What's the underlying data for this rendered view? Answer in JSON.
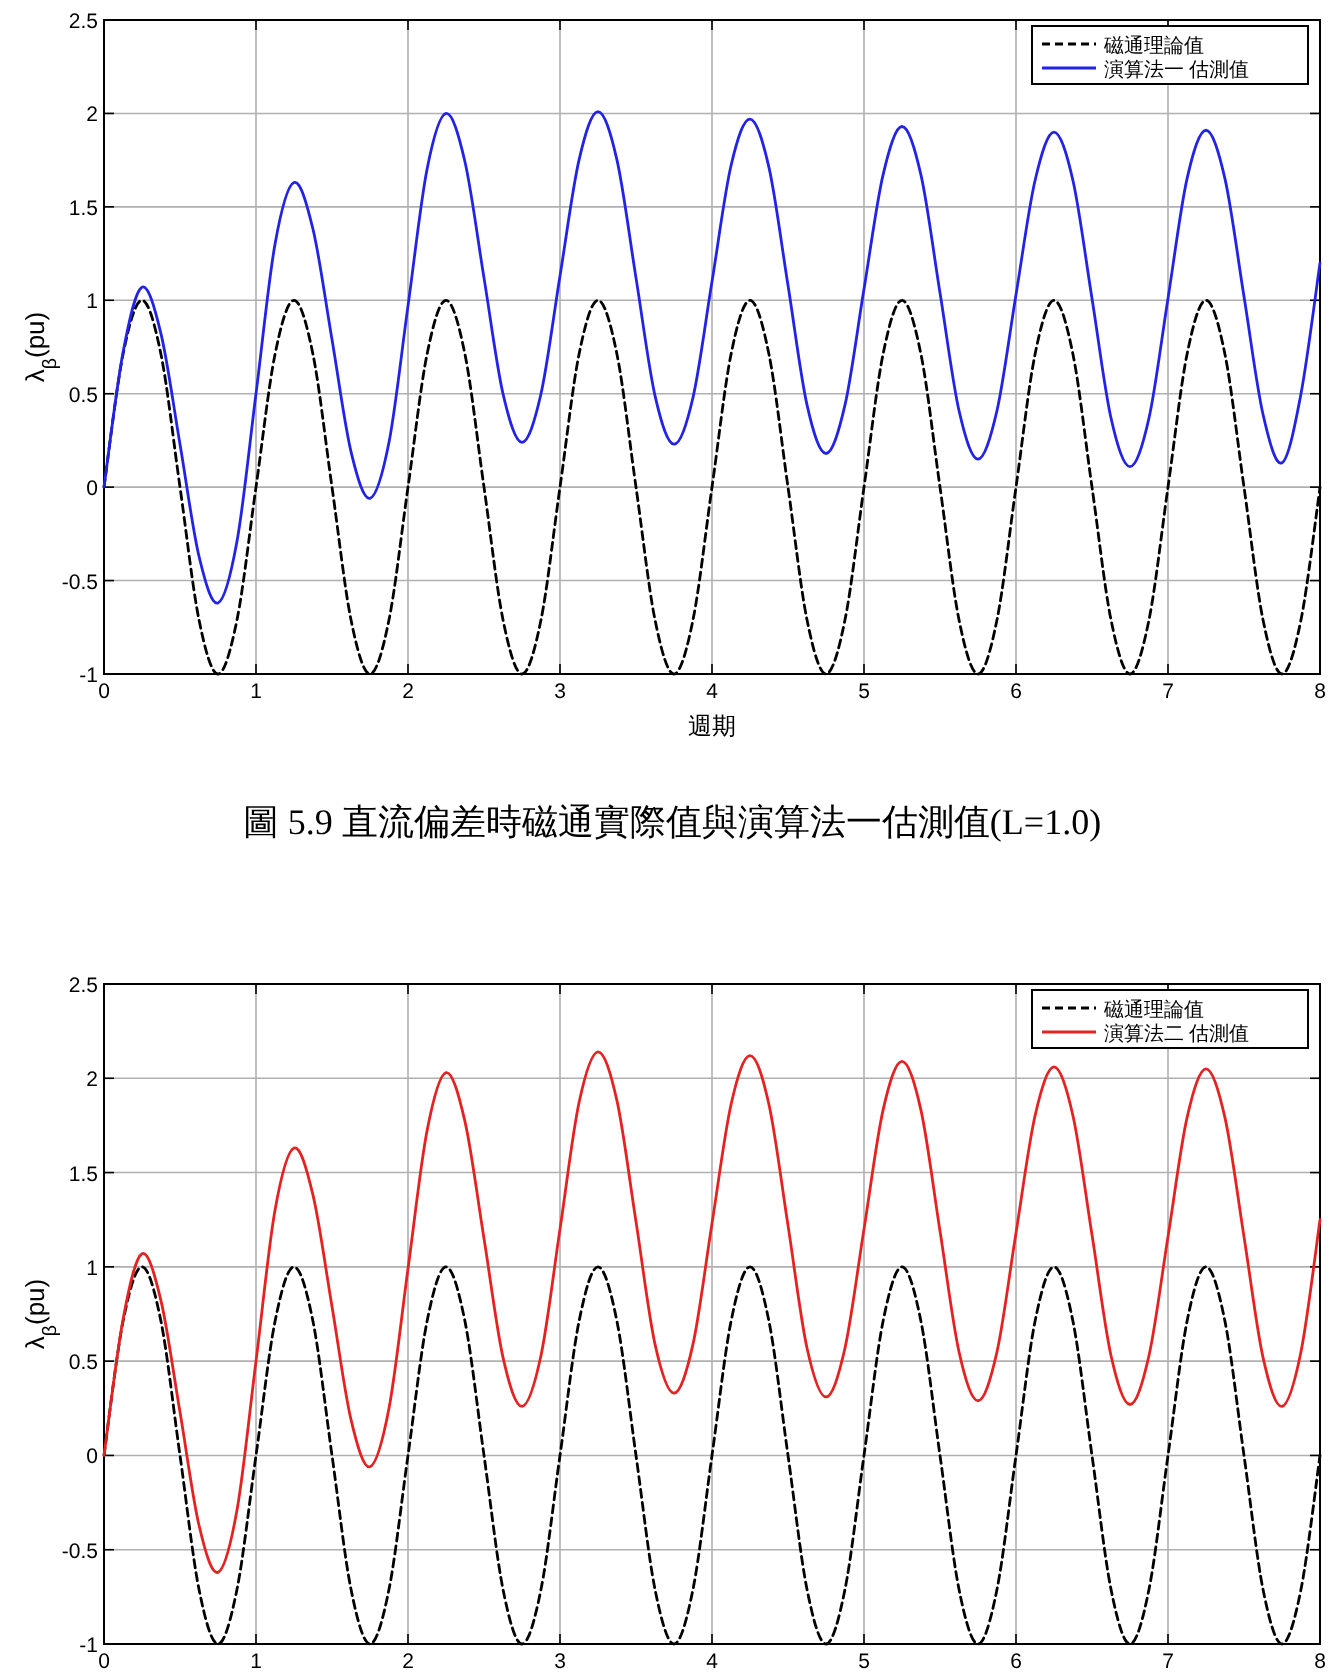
{
  "chart_data": [
    {
      "type": "line",
      "xlabel": "週期",
      "ylabel": "λ$_{β}$(pu)",
      "annotations": [
        "圖 5.9 直流偏差時磁通實際值與演算法一估測值(L=1.0)"
      ],
      "xlim": [
        0,
        8
      ],
      "ylim": [
        -1,
        2.5
      ],
      "xticks": [
        0,
        1,
        2,
        3,
        4,
        5,
        6,
        7,
        8
      ],
      "yticks": [
        -1,
        -0.5,
        0,
        0.5,
        1,
        1.5,
        2,
        2.5
      ],
      "grid": true,
      "legend": "top right",
      "x": [
        0,
        0.125,
        0.25,
        0.375,
        0.5,
        0.625,
        0.75,
        0.875,
        1,
        1.125,
        1.25,
        1.375,
        1.5,
        1.625,
        1.75,
        1.875,
        2,
        2.125,
        2.25,
        2.375,
        2.5,
        2.625,
        2.75,
        2.875,
        3,
        3.125,
        3.25,
        3.375,
        3.5,
        3.625,
        3.75,
        3.875,
        4,
        4.125,
        4.25,
        4.375,
        4.5,
        4.625,
        4.75,
        4.875,
        5,
        5.125,
        5.25,
        5.375,
        5.5,
        5.625,
        5.75,
        5.875,
        6,
        6.125,
        6.25,
        6.375,
        6.5,
        6.625,
        6.75,
        6.875,
        7,
        7.125,
        7.25,
        7.375,
        7.5,
        7.625,
        7.75,
        7.875,
        8
      ],
      "series": [
        {
          "name": "磁通理論值",
          "color": "#000000",
          "line_style": "dashed",
          "values": [
            0,
            0.71,
            1,
            0.71,
            0,
            -0.71,
            -1,
            -0.71,
            0,
            0.71,
            1,
            0.71,
            0,
            -0.71,
            -1,
            -0.71,
            0,
            0.71,
            1,
            0.71,
            0,
            -0.71,
            -1,
            -0.71,
            0,
            0.71,
            1,
            0.71,
            0,
            -0.71,
            -1,
            -0.71,
            0,
            0.71,
            1,
            0.71,
            0,
            -0.71,
            -1,
            -0.71,
            0,
            0.71,
            1,
            0.71,
            0,
            -0.71,
            -1,
            -0.71,
            0,
            0.71,
            1,
            0.71,
            0,
            -0.71,
            -1,
            -0.71,
            0,
            0.71,
            1,
            0.71,
            0,
            -0.71,
            -1,
            -0.71,
            0
          ]
        },
        {
          "name": "演算法一 估測值",
          "color": "#2323e6",
          "line_style": "solid",
          "values": [
            0,
            0.72,
            1.07,
            0.82,
            0.23,
            -0.37,
            -0.62,
            -0.29,
            0.5,
            1.3,
            1.63,
            1.38,
            0.79,
            0.19,
            -0.06,
            0.24,
            0.97,
            1.7,
            2,
            1.74,
            1.12,
            0.5,
            0.24,
            0.5,
            1.13,
            1.75,
            2.01,
            1.75,
            1.12,
            0.49,
            0.23,
            0.48,
            1.1,
            1.72,
            1.97,
            1.71,
            1.08,
            0.44,
            0.18,
            0.44,
            1.06,
            1.67,
            1.93,
            1.67,
            1.04,
            0.41,
            0.15,
            0.41,
            1.03,
            1.64,
            1.9,
            1.64,
            1.01,
            0.37,
            0.11,
            0.37,
            1.01,
            1.65,
            1.91,
            1.65,
            1.02,
            0.39,
            0.13,
            0.5,
            1.2
          ]
        }
      ]
    },
    {
      "type": "line",
      "ylabel": "λ$_{β}$(pu)",
      "xlim": [
        0,
        8
      ],
      "ylim": [
        -1,
        2.5
      ],
      "xticks": [
        0,
        1,
        2,
        3,
        4,
        5,
        6,
        7,
        8
      ],
      "yticks": [
        -1,
        -0.5,
        0,
        0.5,
        1,
        1.5,
        2,
        2.5
      ],
      "grid": true,
      "legend": "top right",
      "x": [
        0,
        0.125,
        0.25,
        0.375,
        0.5,
        0.625,
        0.75,
        0.875,
        1,
        1.125,
        1.25,
        1.375,
        1.5,
        1.625,
        1.75,
        1.875,
        2,
        2.125,
        2.25,
        2.375,
        2.5,
        2.625,
        2.75,
        2.875,
        3,
        3.125,
        3.25,
        3.375,
        3.5,
        3.625,
        3.75,
        3.875,
        4,
        4.125,
        4.25,
        4.375,
        4.5,
        4.625,
        4.75,
        4.875,
        5,
        5.125,
        5.25,
        5.375,
        5.5,
        5.625,
        5.75,
        5.875,
        6,
        6.125,
        6.25,
        6.375,
        6.5,
        6.625,
        6.75,
        6.875,
        7,
        7.125,
        7.25,
        7.375,
        7.5,
        7.625,
        7.75,
        7.875,
        8
      ],
      "series": [
        {
          "name": "磁通理論值",
          "color": "#000000",
          "line_style": "dashed",
          "values": [
            0,
            0.71,
            1,
            0.71,
            0,
            -0.71,
            -1,
            -0.71,
            0,
            0.71,
            1,
            0.71,
            0,
            -0.71,
            -1,
            -0.71,
            0,
            0.71,
            1,
            0.71,
            0,
            -0.71,
            -1,
            -0.71,
            0,
            0.71,
            1,
            0.71,
            0,
            -0.71,
            -1,
            -0.71,
            0,
            0.71,
            1,
            0.71,
            0,
            -0.71,
            -1,
            -0.71,
            0,
            0.71,
            1,
            0.71,
            0,
            -0.71,
            -1,
            -0.71,
            0,
            0.71,
            1,
            0.71,
            0,
            -0.71,
            -1,
            -0.71,
            0,
            0.71,
            1,
            0.71,
            0,
            -0.71,
            -1,
            -0.71,
            0
          ]
        },
        {
          "name": "演算法二 估測值",
          "color": "#e52222",
          "line_style": "solid",
          "values": [
            0,
            0.72,
            1.07,
            0.82,
            0.23,
            -0.37,
            -0.62,
            -0.29,
            0.5,
            1.3,
            1.63,
            1.38,
            0.79,
            0.19,
            -0.06,
            0.25,
            0.99,
            1.72,
            2.03,
            1.77,
            1.15,
            0.52,
            0.26,
            0.53,
            1.2,
            1.87,
            2.14,
            1.88,
            1.24,
            0.59,
            0.33,
            0.59,
            1.23,
            1.86,
            2.12,
            1.86,
            1.22,
            0.57,
            0.31,
            0.57,
            1.2,
            1.83,
            2.09,
            1.83,
            1.19,
            0.55,
            0.29,
            0.55,
            1.18,
            1.8,
            2.06,
            1.8,
            1.17,
            0.53,
            0.27,
            0.53,
            1.16,
            1.79,
            2.05,
            1.79,
            1.16,
            0.52,
            0.26,
            0.55,
            1.25
          ]
        }
      ]
    }
  ]
}
